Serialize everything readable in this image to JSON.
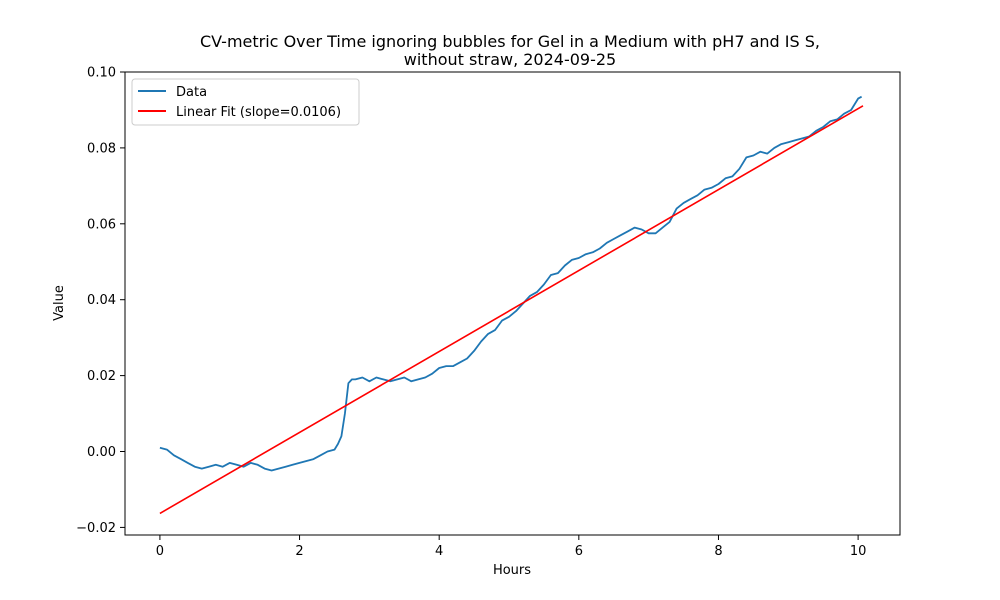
{
  "chart_data": {
    "type": "line",
    "title_line1": "CV-metric Over Time ignoring bubbles for Gel in a Medium with pH7 and IS S,",
    "title_line2": "without straw, 2024-09-25",
    "xlabel": "Hours",
    "ylabel": "Value",
    "xlim": [
      -0.5,
      10.6
    ],
    "ylim": [
      -0.022,
      0.1
    ],
    "xticks": [
      0,
      2,
      4,
      6,
      8,
      10
    ],
    "xtick_labels": [
      "0",
      "2",
      "4",
      "6",
      "8",
      "10"
    ],
    "yticks": [
      -0.02,
      0.0,
      0.02,
      0.04,
      0.06,
      0.08,
      0.1
    ],
    "ytick_labels": [
      "−0.02",
      "0.00",
      "0.02",
      "0.04",
      "0.06",
      "0.08",
      "0.10"
    ],
    "grid": false,
    "legend_position": "top-left",
    "series": [
      {
        "name": "Data",
        "color": "#1f77b4",
        "x": [
          0,
          0.1,
          0.2,
          0.3,
          0.4,
          0.5,
          0.6,
          0.7,
          0.8,
          0.9,
          1.0,
          1.1,
          1.2,
          1.3,
          1.4,
          1.5,
          1.6,
          1.7,
          1.8,
          1.9,
          2.0,
          2.1,
          2.2,
          2.3,
          2.4,
          2.5,
          2.55,
          2.6,
          2.65,
          2.7,
          2.75,
          2.8,
          2.9,
          3.0,
          3.1,
          3.2,
          3.3,
          3.4,
          3.5,
          3.6,
          3.7,
          3.8,
          3.9,
          4.0,
          4.1,
          4.2,
          4.3,
          4.4,
          4.5,
          4.6,
          4.7,
          4.8,
          4.9,
          5.0,
          5.1,
          5.2,
          5.3,
          5.4,
          5.5,
          5.6,
          5.7,
          5.8,
          5.9,
          6.0,
          6.1,
          6.2,
          6.3,
          6.4,
          6.5,
          6.6,
          6.7,
          6.8,
          6.9,
          7.0,
          7.1,
          7.2,
          7.3,
          7.4,
          7.5,
          7.6,
          7.7,
          7.8,
          7.9,
          8.0,
          8.1,
          8.2,
          8.3,
          8.4,
          8.5,
          8.6,
          8.7,
          8.8,
          8.9,
          9.0,
          9.1,
          9.2,
          9.3,
          9.4,
          9.5,
          9.6,
          9.7,
          9.8,
          9.9,
          10.0,
          10.05
        ],
        "y": [
          0.001,
          0.0005,
          -0.001,
          -0.002,
          -0.003,
          -0.004,
          -0.0045,
          -0.004,
          -0.0035,
          -0.004,
          -0.003,
          -0.0035,
          -0.004,
          -0.003,
          -0.0035,
          -0.0045,
          -0.005,
          -0.0045,
          -0.004,
          -0.0035,
          -0.003,
          -0.0025,
          -0.002,
          -0.001,
          0.0,
          0.0005,
          0.002,
          0.004,
          0.01,
          0.018,
          0.019,
          0.019,
          0.0195,
          0.0185,
          0.0195,
          0.019,
          0.0185,
          0.019,
          0.0195,
          0.0185,
          0.019,
          0.0195,
          0.0205,
          0.022,
          0.0225,
          0.0225,
          0.0235,
          0.0245,
          0.0265,
          0.029,
          0.031,
          0.032,
          0.0345,
          0.0355,
          0.037,
          0.039,
          0.041,
          0.042,
          0.044,
          0.0465,
          0.047,
          0.049,
          0.0505,
          0.051,
          0.052,
          0.0525,
          0.0535,
          0.055,
          0.056,
          0.057,
          0.058,
          0.059,
          0.0585,
          0.0575,
          0.0575,
          0.059,
          0.0605,
          0.064,
          0.0655,
          0.0665,
          0.0675,
          0.069,
          0.0695,
          0.0705,
          0.072,
          0.0725,
          0.0745,
          0.0775,
          0.078,
          0.079,
          0.0785,
          0.08,
          0.081,
          0.0815,
          0.082,
          0.0825,
          0.083,
          0.0845,
          0.0855,
          0.087,
          0.0875,
          0.089,
          0.09,
          0.093,
          0.0935
        ]
      },
      {
        "name": "Linear Fit (slope=0.0106)",
        "color": "#ff0000",
        "x": [
          0,
          10.07
        ],
        "y": [
          -0.0163,
          0.0911
        ]
      }
    ]
  }
}
